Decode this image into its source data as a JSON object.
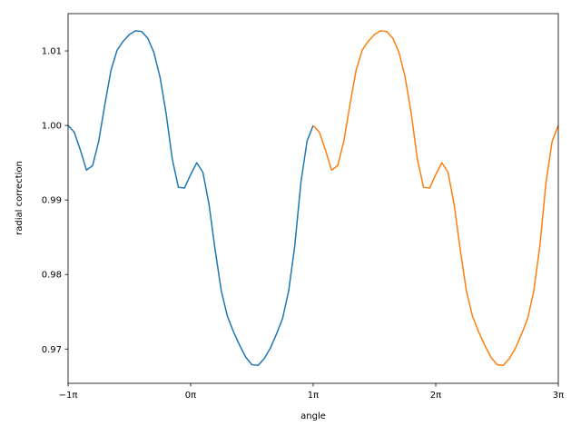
{
  "chart_data": {
    "type": "line",
    "x_label": "angle",
    "y_label": "radial correction",
    "xlim": [
      -1,
      3
    ],
    "ylim": [
      0.9654,
      1.015
    ],
    "xticks": [
      {
        "value": -1,
        "label": "−1π"
      },
      {
        "value": 0,
        "label": "0π"
      },
      {
        "value": 1,
        "label": "1π"
      },
      {
        "value": 2,
        "label": "2π"
      },
      {
        "value": 3,
        "label": "3π"
      }
    ],
    "yticks": [
      0.97,
      0.98,
      0.99,
      {
        "value": 1,
        "label": "1.00"
      },
      1.01
    ],
    "grid": false,
    "series": [
      {
        "color": "#1f77b4",
        "x": [
          -1,
          -0.95,
          -0.9,
          -0.85,
          -0.8,
          -0.75,
          -0.7,
          -0.65,
          -0.6,
          -0.55,
          -0.5,
          -0.45,
          -0.4,
          -0.35,
          -0.3,
          -0.25,
          -0.2,
          -0.15,
          -0.1,
          -0.05,
          0,
          0.05,
          0.1,
          0.15,
          0.2,
          0.25,
          0.3,
          0.35,
          0.4,
          0.45,
          0.5,
          0.55,
          0.6,
          0.65,
          0.7,
          0.75,
          0.8,
          0.85,
          0.9,
          0.95,
          1
        ],
        "values": [
          1.0,
          0.9991,
          0.9967,
          0.994,
          0.9946,
          0.9979,
          1.0028,
          1.0074,
          1.0101,
          1.0113,
          1.0122,
          1.0127,
          1.0126,
          1.0117,
          1.0098,
          1.0065,
          1.0016,
          0.9955,
          0.9917,
          0.9916,
          0.9934,
          0.995,
          0.9937,
          0.9894,
          0.9833,
          0.9778,
          0.9744,
          0.9723,
          0.9705,
          0.9689,
          0.9679,
          0.9678,
          0.9687,
          0.9701,
          0.972,
          0.9741,
          0.9778,
          0.9839,
          0.9924,
          0.9979,
          1.0
        ]
      },
      {
        "color": "#ff7f0e",
        "x": [
          1,
          1.05,
          1.1,
          1.15,
          1.2,
          1.25,
          1.3,
          1.35,
          1.4,
          1.45,
          1.5,
          1.55,
          1.6,
          1.65,
          1.7,
          1.75,
          1.8,
          1.85,
          1.9,
          1.95,
          2,
          2.05,
          2.1,
          2.15,
          2.2,
          2.25,
          2.3,
          2.35,
          2.4,
          2.45,
          2.5,
          2.55,
          2.6,
          2.65,
          2.7,
          2.75,
          2.8,
          2.85,
          2.9,
          2.95,
          3
        ],
        "values": [
          1.0,
          0.9991,
          0.9967,
          0.994,
          0.9946,
          0.9979,
          1.0028,
          1.0074,
          1.0101,
          1.0113,
          1.0122,
          1.0127,
          1.0126,
          1.0117,
          1.0098,
          1.0065,
          1.0016,
          0.9955,
          0.9917,
          0.9916,
          0.9934,
          0.995,
          0.9937,
          0.9894,
          0.9833,
          0.9778,
          0.9744,
          0.9723,
          0.9705,
          0.9689,
          0.9679,
          0.9678,
          0.9687,
          0.9701,
          0.972,
          0.9741,
          0.9778,
          0.9839,
          0.9924,
          0.9979,
          1.0
        ]
      }
    ]
  }
}
